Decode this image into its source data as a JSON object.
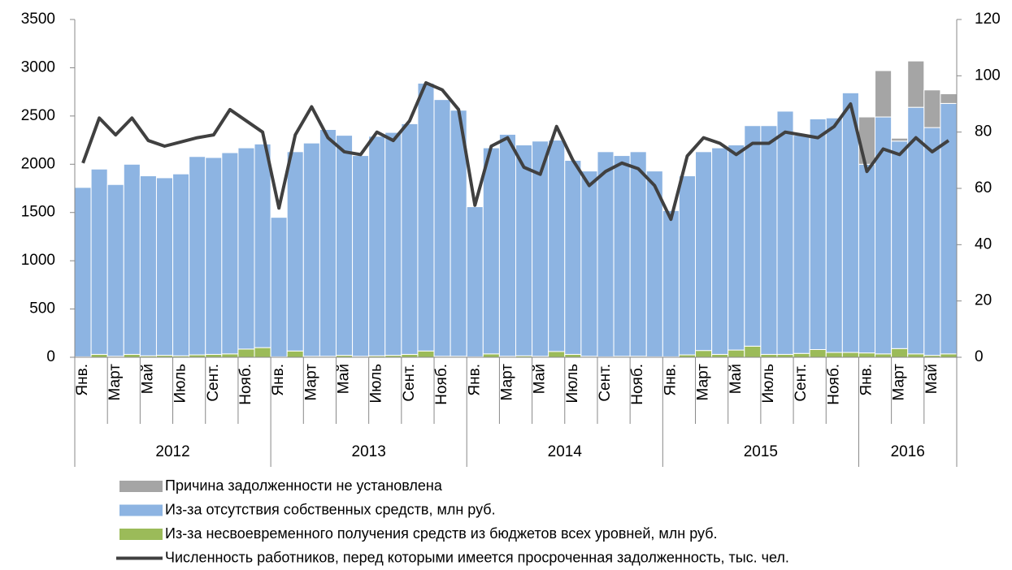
{
  "chart_data": {
    "type": "bar",
    "categories": [
      "Янв.",
      null,
      "Март",
      null,
      "Май",
      null,
      "Июль",
      null,
      "Сент.",
      null,
      "Нояб.",
      null,
      "Янв.",
      null,
      "Март",
      null,
      "Май",
      null,
      "Июль",
      null,
      "Сент.",
      null,
      "Нояб.",
      null,
      "Янв.",
      null,
      "Март",
      null,
      "Май",
      null,
      "Июль",
      null,
      "Сент.",
      null,
      "Нояб.",
      null,
      "Янв.",
      null,
      "Март",
      null,
      "Май",
      null,
      "Июль",
      null,
      "Сент.",
      null,
      "Нояб.",
      null,
      "Янв.",
      null,
      "Март",
      null,
      "Май",
      null
    ],
    "years": [
      "2012",
      "2013",
      "2014",
      "2015",
      "2016"
    ],
    "series": [
      {
        "name": "Причина задолженности не установлена",
        "color": "#a5a5a5",
        "values": [
          0,
          0,
          0,
          0,
          0,
          0,
          0,
          0,
          0,
          0,
          0,
          0,
          0,
          0,
          0,
          0,
          0,
          0,
          0,
          0,
          0,
          0,
          0,
          0,
          0,
          0,
          0,
          0,
          0,
          0,
          0,
          0,
          0,
          0,
          0,
          0,
          0,
          0,
          0,
          0,
          0,
          0,
          0,
          0,
          0,
          0,
          0,
          0,
          490,
          480,
          30,
          480,
          390,
          100
        ]
      },
      {
        "name": "Из-за отсутствия собственных средств, млн руб.",
        "color": "#8db4e2",
        "values": [
          1755,
          1920,
          1780,
          1970,
          1865,
          1840,
          1885,
          2055,
          2040,
          2085,
          2085,
          2110,
          1445,
          2065,
          2210,
          2350,
          2280,
          2080,
          2275,
          2310,
          2390,
          2775,
          2660,
          2550,
          1555,
          2135,
          2300,
          2185,
          2230,
          2190,
          2010,
          1920,
          2125,
          2080,
          2120,
          1925,
          1515,
          1855,
          2060,
          2140,
          2125,
          2285,
          2370,
          2520,
          2260,
          2390,
          2430,
          2690,
          1955,
          2455,
          2150,
          2555,
          2360,
          2595
        ]
      },
      {
        "name": "Из-за несвоевременного получения средств из бюджетов всех уровней, млн руб.",
        "color": "#9bbb59",
        "values": [
          5,
          30,
          10,
          30,
          15,
          20,
          15,
          25,
          30,
          35,
          85,
          100,
          5,
          65,
          10,
          10,
          20,
          10,
          15,
          20,
          30,
          65,
          10,
          10,
          5,
          35,
          10,
          15,
          10,
          60,
          30,
          10,
          5,
          10,
          10,
          5,
          5,
          25,
          70,
          30,
          75,
          115,
          30,
          30,
          40,
          80,
          50,
          50,
          45,
          35,
          90,
          35,
          20,
          35
        ]
      },
      {
        "name": "Численность работников, перед которыми имеется просроченная задолженность, тыс. чел.",
        "color": "#404040",
        "axis": "y2",
        "type": "line",
        "values": [
          69,
          85,
          79,
          85,
          77,
          75,
          76.5,
          78,
          79,
          88,
          84,
          80,
          53,
          79,
          89,
          78,
          73,
          72,
          80,
          77,
          84,
          97.5,
          95,
          88,
          54,
          75,
          78,
          67.5,
          65,
          82,
          70,
          61,
          66,
          69,
          67,
          61,
          49,
          71.5,
          78,
          76,
          72,
          76,
          76,
          80,
          79,
          78,
          82,
          90,
          66,
          74,
          72,
          78,
          73,
          77
        ]
      }
    ],
    "ylim": [
      0,
      3500
    ],
    "yticks": [
      0,
      500,
      1000,
      1500,
      2000,
      2500,
      3000,
      3500
    ],
    "y2lim": [
      0,
      120
    ],
    "y2ticks": [
      0,
      20,
      40,
      60,
      80,
      100,
      120
    ]
  }
}
